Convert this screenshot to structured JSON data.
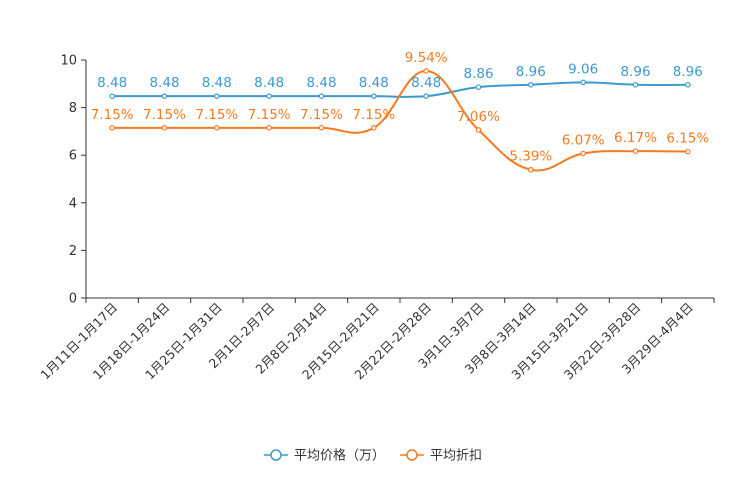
{
  "chart_data": {
    "type": "line",
    "categories": [
      "1月11日-1月17日",
      "1月18日-1月24日",
      "1月25日-1月31日",
      "2月1日-2月7日",
      "2月8日-2月14日",
      "2月15日-2月21日",
      "2月22日-2月28日",
      "3月1日-3月7日",
      "3月8日-3月14日",
      "3月15日-3月21日",
      "3月22日-3月28日",
      "3月29日-4月4日"
    ],
    "ylim": [
      0,
      10
    ],
    "yticks": [
      0,
      2,
      4,
      6,
      8,
      10
    ],
    "series": [
      {
        "name": "平均价格（万）",
        "color": "#3b9ad0",
        "values": [
          8.48,
          8.48,
          8.48,
          8.48,
          8.48,
          8.48,
          8.48,
          8.86,
          8.96,
          9.06,
          8.96,
          8.96
        ],
        "labels": [
          "8.48",
          "8.48",
          "8.48",
          "8.48",
          "8.48",
          "8.48",
          "8.48",
          "8.86",
          "8.96",
          "9.06",
          "8.96",
          "8.96"
        ]
      },
      {
        "name": "平均折扣",
        "color": "#f47b20",
        "values": [
          7.15,
          7.15,
          7.15,
          7.15,
          7.15,
          7.15,
          9.54,
          7.06,
          5.39,
          6.07,
          6.17,
          6.15
        ],
        "labels": [
          "7.15%",
          "7.15%",
          "7.15%",
          "7.15%",
          "7.15%",
          "7.15%",
          "9.54%",
          "7.06%",
          "5.39%",
          "6.07%",
          "6.17%",
          "6.15%"
        ]
      }
    ],
    "legend_position": "bottom-center"
  }
}
